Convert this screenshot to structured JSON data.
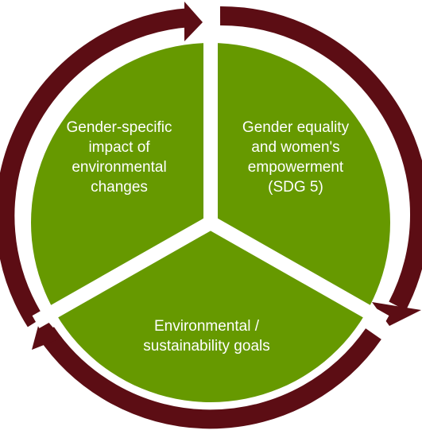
{
  "diagram": {
    "type": "cycle",
    "colors": {
      "segment_fill": "#669900",
      "arrow": "#5c0d14",
      "gap": "#ffffff"
    },
    "segments": [
      {
        "id": "top-left",
        "label": "Gender-specific\nimpact of\nenvironmental\nchanges"
      },
      {
        "id": "top-right",
        "label": "Gender equality\nand women's\nempowerment\n(SDG 5)"
      },
      {
        "id": "bottom",
        "label": "Environmental /\nsustainability goals"
      }
    ]
  }
}
